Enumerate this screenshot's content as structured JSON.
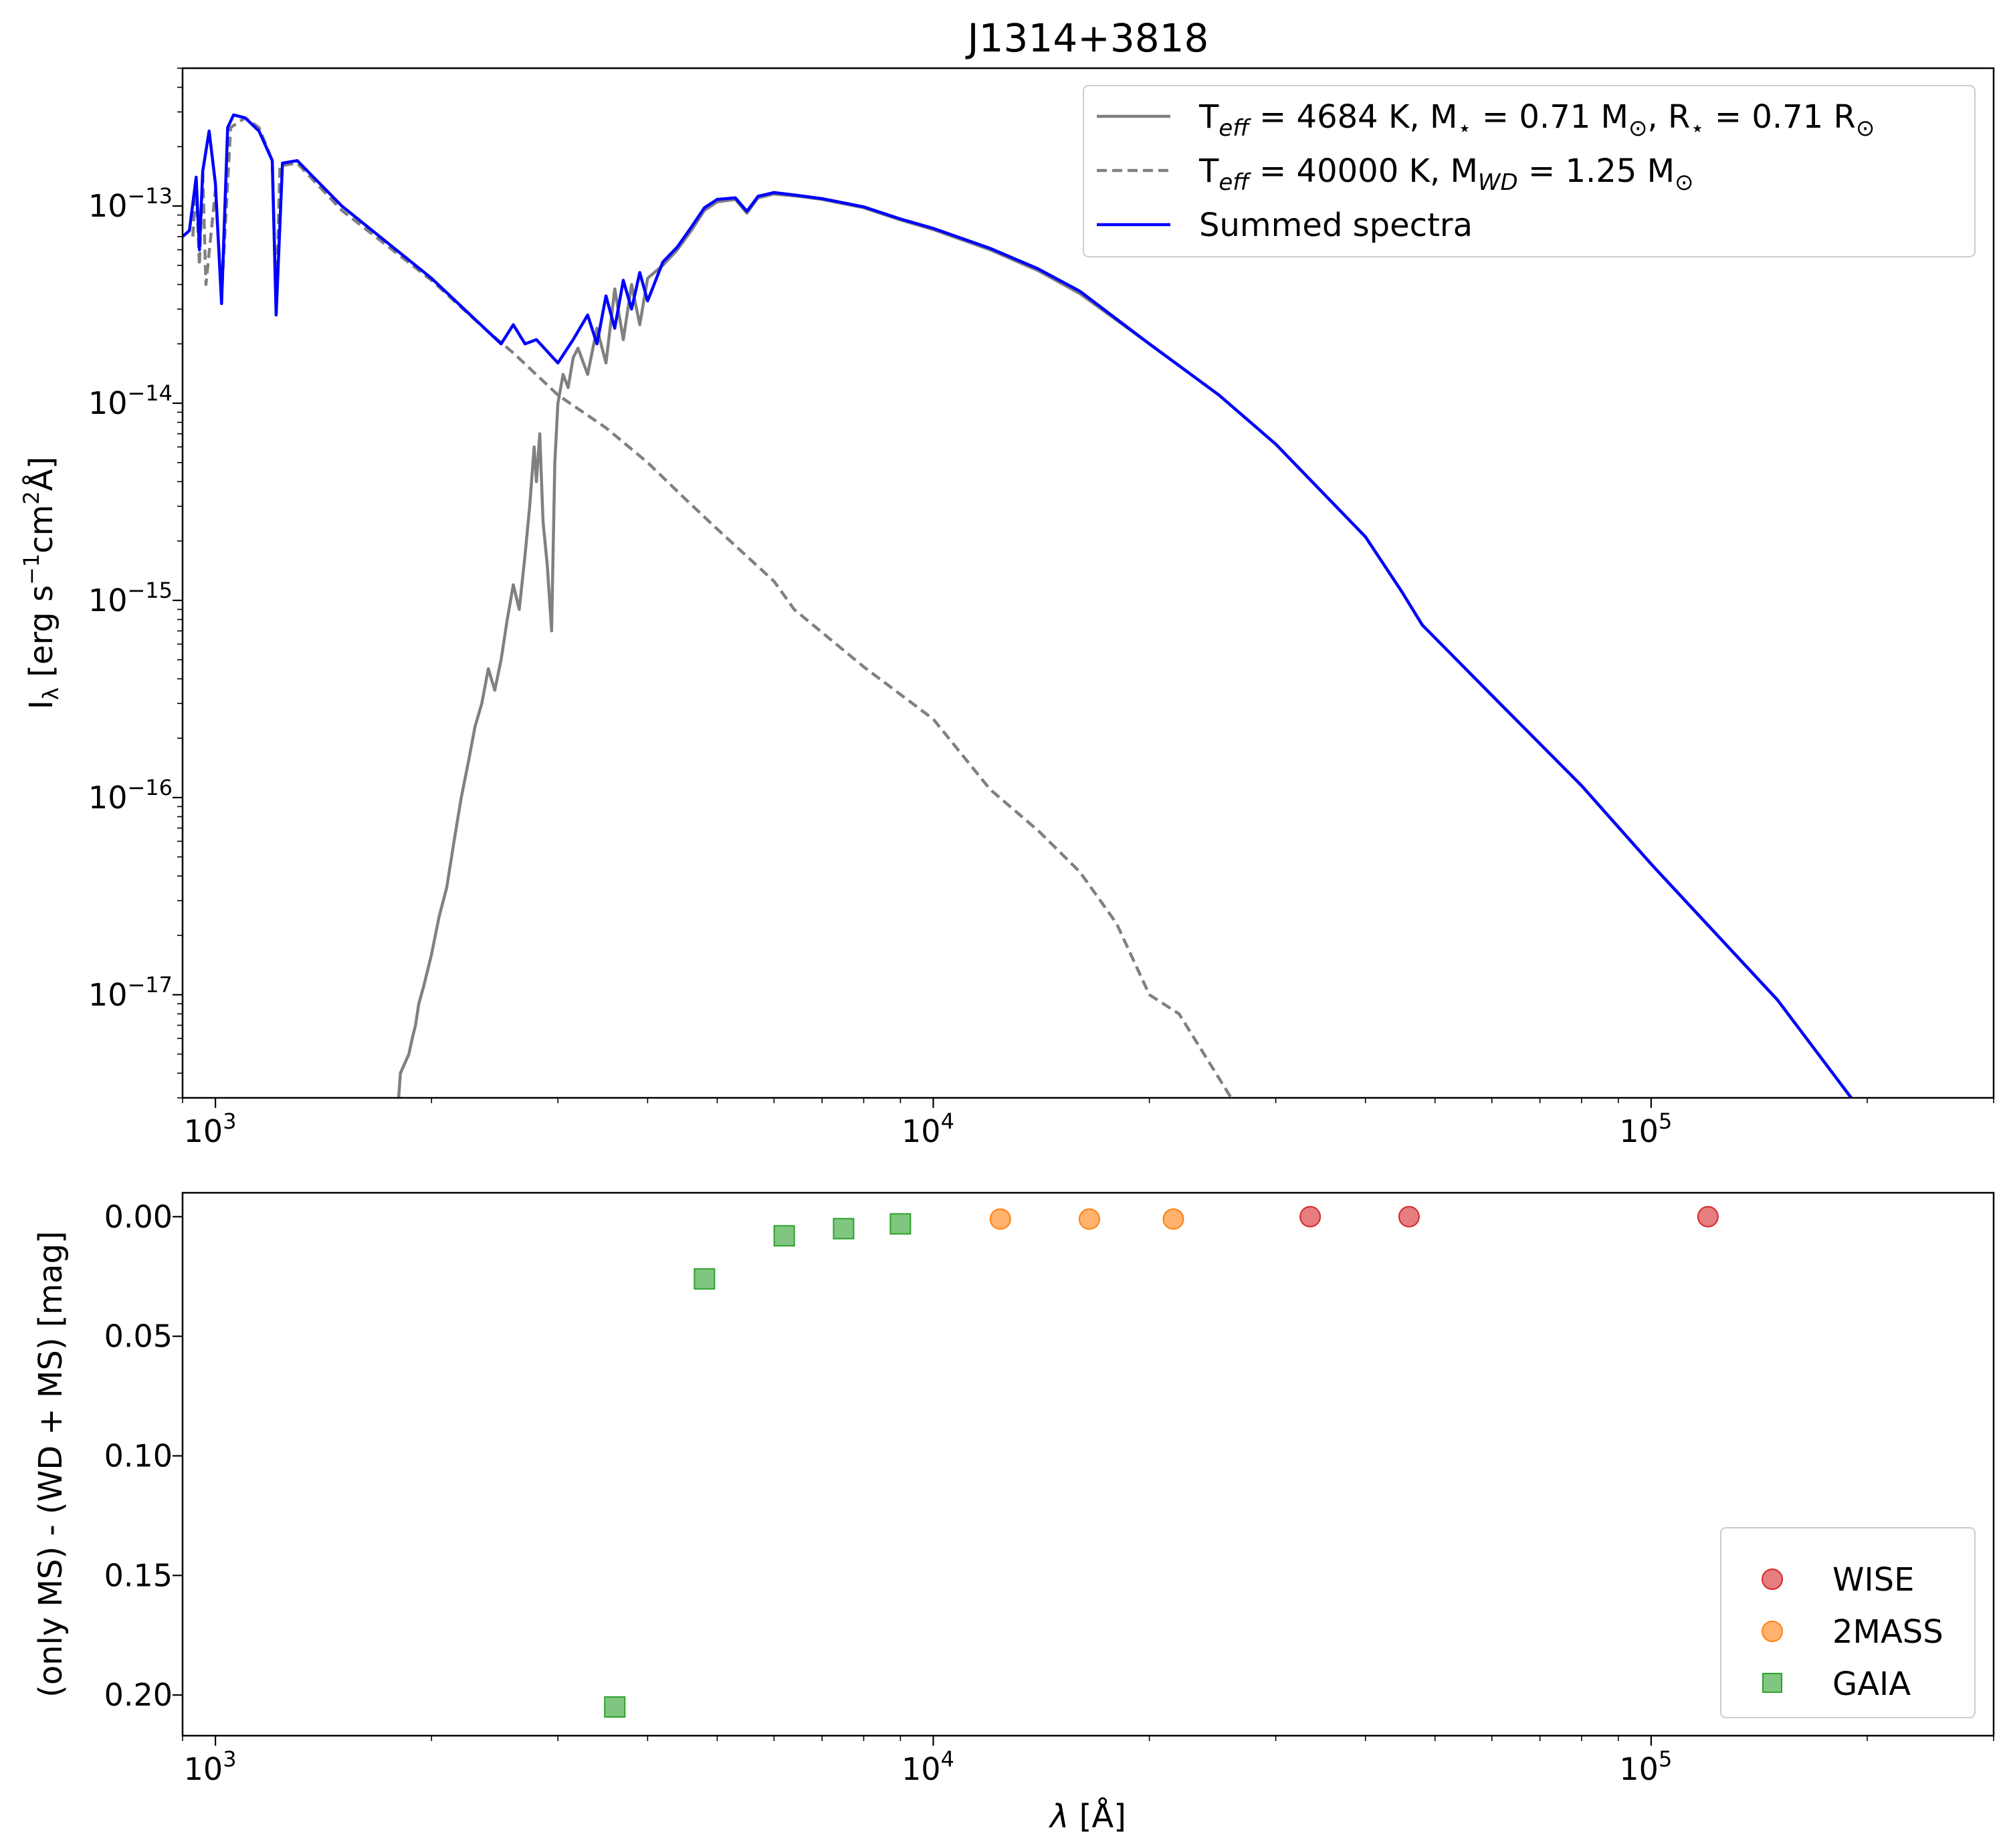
{
  "chart_data": [
    {
      "type": "line",
      "title": "J1314+3818",
      "xscale": "log",
      "yscale": "log",
      "xlim": [
        900,
        300000
      ],
      "ylim": [
        3e-18,
        5e-13
      ],
      "xlabel": "",
      "ylabel": {
        "base": "I",
        "sub": "λ",
        "unit": " [erg s",
        "sup1": "−1",
        "mid": "cm",
        "sup2": "2",
        "end": "Å]"
      },
      "xticks": [
        {
          "value": 1000,
          "base": "10",
          "exp": "3"
        },
        {
          "value": 10000,
          "base": "10",
          "exp": "4"
        },
        {
          "value": 100000,
          "base": "10",
          "exp": "5"
        }
      ],
      "yticks": [
        {
          "value": 1e-13,
          "base": "10",
          "exp": "−13"
        },
        {
          "value": 1e-14,
          "base": "10",
          "exp": "−14"
        },
        {
          "value": 1e-15,
          "base": "10",
          "exp": "−15"
        },
        {
          "value": 1e-16,
          "base": "10",
          "exp": "−16"
        },
        {
          "value": 1e-17,
          "base": "10",
          "exp": "−17"
        }
      ],
      "legend": {
        "placement": "top-right",
        "entries": [
          {
            "style": "solid",
            "color": "#808080",
            "parts": [
              [
                "T",
                ""
              ],
              [
                "eff",
                "sub-i"
              ],
              [
                " = 4684 K, M",
                ""
              ],
              [
                "⋆",
                "sub"
              ],
              [
                " = 0.71 M",
                ""
              ],
              [
                "⊙",
                "sub"
              ],
              [
                ", R",
                ""
              ],
              [
                "⋆",
                "sub"
              ],
              [
                " = 0.71 R",
                ""
              ],
              [
                "⊙",
                "sub"
              ]
            ]
          },
          {
            "style": "dashed",
            "color": "#808080",
            "parts": [
              [
                "T",
                ""
              ],
              [
                "eff",
                "sub-i"
              ],
              [
                " = 40000 K, M",
                ""
              ],
              [
                "WD",
                "sub-i"
              ],
              [
                " = 1.25 M",
                ""
              ],
              [
                "⊙",
                "sub"
              ]
            ]
          },
          {
            "style": "solid",
            "color": "#0000ff",
            "parts": [
              [
                "Summed spectra",
                ""
              ]
            ]
          }
        ]
      },
      "series": [
        {
          "color": "#808080",
          "style": "solid",
          "points": [
            [
              1800,
              3e-18
            ],
            [
              1810,
              4e-18
            ],
            [
              1860,
              5e-18
            ],
            [
              1880,
              6e-18
            ],
            [
              1900,
              7e-18
            ],
            [
              1920,
              9e-18
            ],
            [
              1950,
              1.1e-17
            ],
            [
              2000,
              1.6e-17
            ],
            [
              2050,
              2.5e-17
            ],
            [
              2100,
              3.5e-17
            ],
            [
              2150,
              6e-17
            ],
            [
              2200,
              1e-16
            ],
            [
              2250,
              1.5e-16
            ],
            [
              2300,
              2.3e-16
            ],
            [
              2350,
              3e-16
            ],
            [
              2400,
              4.5e-16
            ],
            [
              2450,
              3.5e-16
            ],
            [
              2500,
              5e-16
            ],
            [
              2550,
              8e-16
            ],
            [
              2600,
              1.2e-15
            ],
            [
              2650,
              9e-16
            ],
            [
              2700,
              1.7e-15
            ],
            [
              2740,
              3e-15
            ],
            [
              2780,
              6e-15
            ],
            [
              2800,
              4e-15
            ],
            [
              2830,
              7e-15
            ],
            [
              2860,
              2.5e-15
            ],
            [
              2900,
              1.5e-15
            ],
            [
              2940,
              7e-16
            ],
            [
              2970,
              5e-15
            ],
            [
              3000,
              1e-14
            ],
            [
              3050,
              1.4e-14
            ],
            [
              3100,
              1.2e-14
            ],
            [
              3150,
              1.7e-14
            ],
            [
              3200,
              1.9e-14
            ],
            [
              3300,
              1.4e-14
            ],
            [
              3400,
              2.4e-14
            ],
            [
              3500,
              1.6e-14
            ],
            [
              3600,
              3.8e-14
            ],
            [
              3700,
              2.1e-14
            ],
            [
              3800,
              4e-14
            ],
            [
              3900,
              2.5e-14
            ],
            [
              4000,
              4.3e-14
            ],
            [
              4200,
              5e-14
            ],
            [
              4400,
              6e-14
            ],
            [
              4600,
              7.5e-14
            ],
            [
              4800,
              9.5e-14
            ],
            [
              5000,
              1.05e-13
            ],
            [
              5300,
              1.08e-13
            ],
            [
              5500,
              9.2e-14
            ],
            [
              5700,
              1.1e-13
            ],
            [
              6000,
              1.15e-13
            ],
            [
              6500,
              1.12e-13
            ],
            [
              7000,
              1.08e-13
            ],
            [
              8000,
              9.8e-14
            ],
            [
              9000,
              8.5e-14
            ],
            [
              10000,
              7.6e-14
            ],
            [
              12000,
              6e-14
            ],
            [
              14000,
              4.7e-14
            ],
            [
              16000,
              3.6e-14
            ],
            [
              20000,
              2e-14
            ],
            [
              25000,
              1.1e-14
            ],
            [
              30000,
              6.2e-15
            ],
            [
              40000,
              2.1e-15
            ],
            [
              45000,
              1.1e-15
            ],
            [
              48000,
              7.5e-16
            ],
            [
              60000,
              3.3e-16
            ],
            [
              80000,
              1.15e-16
            ],
            [
              100000,
              4.6e-17
            ],
            [
              150000,
              9.4e-18
            ],
            [
              190000,
              3e-18
            ]
          ]
        },
        {
          "color": "#808080",
          "style": "dashed",
          "points": [
            [
              930,
              7e-14
            ],
            [
              940,
              1.3e-13
            ],
            [
              950,
              5e-14
            ],
            [
              960,
              1.5e-13
            ],
            [
              970,
              4e-14
            ],
            [
              1000,
              1.2e-13
            ],
            [
              1020,
              3.5e-14
            ],
            [
              1050,
              2.5e-13
            ],
            [
              1100,
              2.8e-13
            ],
            [
              1150,
              2.5e-13
            ],
            [
              1200,
              1.7e-13
            ],
            [
              1215,
              3e-14
            ],
            [
              1230,
              1.6e-13
            ],
            [
              1300,
              1.65e-13
            ],
            [
              1500,
              9.5e-14
            ],
            [
              2000,
              4.2e-14
            ],
            [
              2400,
              2.3e-14
            ],
            [
              2600,
              1.8e-14
            ],
            [
              3000,
              1.1e-14
            ],
            [
              3500,
              7.5e-15
            ],
            [
              4000,
              5e-15
            ],
            [
              4500,
              3.3e-15
            ],
            [
              5000,
              2.3e-15
            ],
            [
              6000,
              1.25e-15
            ],
            [
              6400,
              9e-16
            ],
            [
              8000,
              4.6e-16
            ],
            [
              10000,
              2.5e-16
            ],
            [
              12000,
              1.1e-16
            ],
            [
              14000,
              6.8e-17
            ],
            [
              16000,
              4.2e-17
            ],
            [
              18000,
              2.3e-17
            ],
            [
              20000,
              1e-17
            ],
            [
              22000,
              8e-18
            ],
            [
              26000,
              3e-18
            ]
          ]
        },
        {
          "color": "#0000ff",
          "style": "solid",
          "points": [
            [
              900,
              7e-14
            ],
            [
              920,
              7.5e-14
            ],
            [
              940,
              1.4e-13
            ],
            [
              950,
              6e-14
            ],
            [
              960,
              1.5e-13
            ],
            [
              980,
              2.4e-13
            ],
            [
              1000,
              1.3e-13
            ],
            [
              1020,
              3.2e-14
            ],
            [
              1040,
              2.5e-13
            ],
            [
              1060,
              2.9e-13
            ],
            [
              1100,
              2.8e-13
            ],
            [
              1150,
              2.4e-13
            ],
            [
              1200,
              1.7e-13
            ],
            [
              1215,
              2.8e-14
            ],
            [
              1240,
              1.65e-13
            ],
            [
              1300,
              1.7e-13
            ],
            [
              1500,
              1e-13
            ],
            [
              2000,
              4.3e-14
            ],
            [
              2400,
              2.3e-14
            ],
            [
              2500,
              2e-14
            ],
            [
              2600,
              2.5e-14
            ],
            [
              2700,
              2e-14
            ],
            [
              2800,
              2.1e-14
            ],
            [
              3000,
              1.6e-14
            ],
            [
              3150,
              2.1e-14
            ],
            [
              3300,
              2.8e-14
            ],
            [
              3400,
              2e-14
            ],
            [
              3500,
              3.5e-14
            ],
            [
              3600,
              2.4e-14
            ],
            [
              3700,
              4.2e-14
            ],
            [
              3800,
              3e-14
            ],
            [
              3900,
              4.6e-14
            ],
            [
              4000,
              3.3e-14
            ],
            [
              4200,
              5.2e-14
            ],
            [
              4400,
              6.2e-14
            ],
            [
              4600,
              7.8e-14
            ],
            [
              4800,
              9.8e-14
            ],
            [
              5000,
              1.08e-13
            ],
            [
              5300,
              1.1e-13
            ],
            [
              5500,
              9.4e-14
            ],
            [
              5700,
              1.12e-13
            ],
            [
              6000,
              1.17e-13
            ],
            [
              6500,
              1.13e-13
            ],
            [
              7000,
              1.09e-13
            ],
            [
              8000,
              9.9e-14
            ],
            [
              9000,
              8.6e-14
            ],
            [
              10000,
              7.7e-14
            ],
            [
              12000,
              6.1e-14
            ],
            [
              14000,
              4.8e-14
            ],
            [
              16000,
              3.7e-14
            ],
            [
              20000,
              2e-14
            ],
            [
              25000,
              1.1e-14
            ],
            [
              30000,
              6.2e-15
            ],
            [
              40000,
              2.1e-15
            ],
            [
              45000,
              1.1e-15
            ],
            [
              48000,
              7.5e-16
            ],
            [
              60000,
              3.3e-16
            ],
            [
              80000,
              1.15e-16
            ],
            [
              100000,
              4.6e-17
            ],
            [
              150000,
              9.4e-18
            ],
            [
              190000,
              3e-18
            ]
          ]
        }
      ]
    },
    {
      "type": "scatter",
      "title": "",
      "xscale": "log",
      "xlim": [
        900,
        300000
      ],
      "ylim": [
        0.217,
        -0.01
      ],
      "yinverted": true,
      "xlabel": {
        "main": "λ",
        "unit": " [Å]"
      },
      "ylabel": "(only MS) - (WD + MS) [mag]",
      "xticks": [
        {
          "value": 1000,
          "base": "10",
          "exp": "3"
        },
        {
          "value": 10000,
          "base": "10",
          "exp": "4"
        },
        {
          "value": 100000,
          "base": "10",
          "exp": "5"
        }
      ],
      "yticks": [
        {
          "value": 0.0,
          "label": "0.00"
        },
        {
          "value": 0.05,
          "label": "0.05"
        },
        {
          "value": 0.1,
          "label": "0.10"
        },
        {
          "value": 0.15,
          "label": "0.15"
        },
        {
          "value": 0.2,
          "label": "0.20"
        }
      ],
      "legend": {
        "placement": "lower-right",
        "entries": [
          "WISE",
          "2MASS",
          "GAIA"
        ]
      },
      "series": [
        {
          "name": "WISE",
          "marker": "circle",
          "color": "#d62728",
          "x": [
            33500,
            46000,
            120000
          ],
          "y": [
            0.0,
            0.0,
            0.0
          ]
        },
        {
          "name": "2MASS",
          "marker": "circle",
          "color": "#ff7f0e",
          "x": [
            12400,
            16500,
            21600
          ],
          "y": [
            0.001,
            0.001,
            0.001
          ]
        },
        {
          "name": "GAIA",
          "marker": "square",
          "color": "#2ca02c",
          "x": [
            3600,
            4800,
            6200,
            7500,
            9000
          ],
          "y": [
            0.205,
            0.026,
            0.008,
            0.005,
            0.003
          ]
        }
      ]
    }
  ]
}
